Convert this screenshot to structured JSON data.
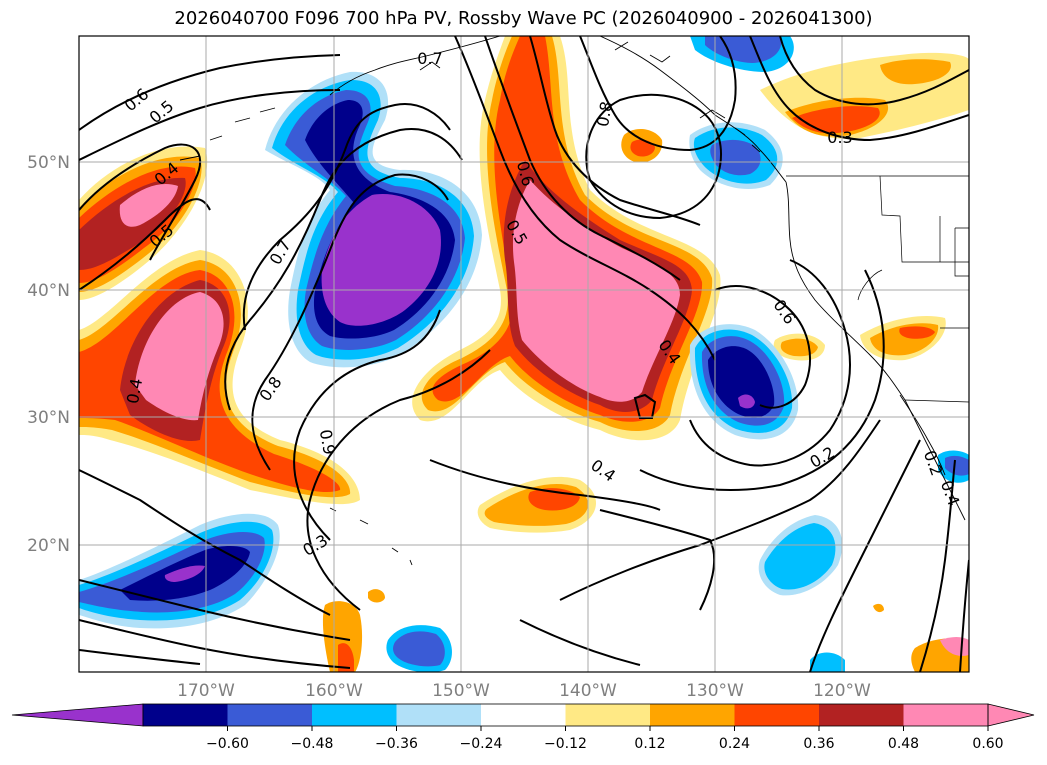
{
  "title": "2026040700 F096 700 hPa PV, Rossby Wave PC (2026040900 - 2026041300)",
  "map": {
    "lon_labels": [
      "170°W",
      "160°W",
      "150°W",
      "140°W",
      "130°W",
      "120°W"
    ],
    "lat_labels": [
      "50°N",
      "40°N",
      "30°N",
      "20°N"
    ]
  },
  "colorbar": {
    "ticks": [
      "−0.60",
      "−0.48",
      "−0.36",
      "−0.24",
      "−0.12",
      "0.12",
      "0.24",
      "0.36",
      "0.48",
      "0.60"
    ],
    "colors": [
      "#9932cc",
      "#00008b",
      "#3a5bd6",
      "#00bfff",
      "#b0e0f8",
      "#ffffff",
      "#ffe985",
      "#ffa500",
      "#ff4500",
      "#b22222",
      "#ff88b4",
      "#ff88b4"
    ]
  },
  "contour_labels": [
    "0.6",
    "0.5",
    "0.4",
    "0.5",
    "0.7",
    "0.8",
    "0.9",
    "0.3",
    "0.4",
    "0.6",
    "0.5",
    "0.8",
    "0.4",
    "0.4",
    "0.6",
    "0.3",
    "0.2",
    "0.2",
    "0.4",
    "0.7"
  ]
}
